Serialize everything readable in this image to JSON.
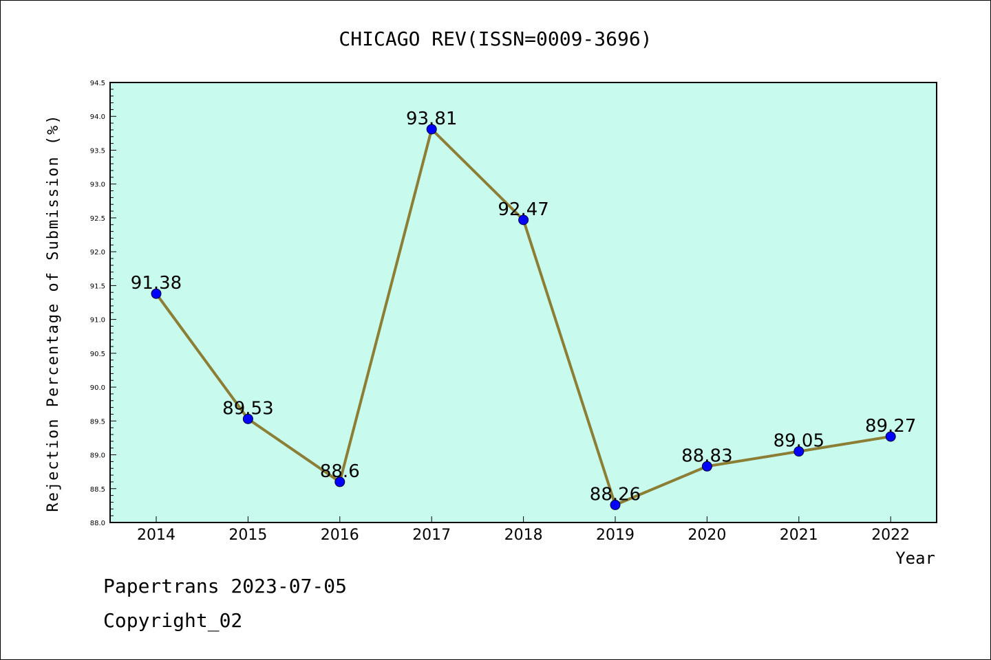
{
  "chart_data": {
    "type": "line",
    "title": "CHICAGO REV(ISSN=0009-3696)",
    "xlabel": "Year",
    "ylabel": "Rejection Percentage of Submission (%)",
    "categories": [
      "2014",
      "2015",
      "2016",
      "2017",
      "2018",
      "2019",
      "2020",
      "2021",
      "2022"
    ],
    "values": [
      91.38,
      89.53,
      88.6,
      93.81,
      92.47,
      88.26,
      88.83,
      89.05,
      89.27
    ],
    "data_labels": [
      "91.38",
      "89.53",
      "88.6",
      "93.81",
      "92.47",
      "88.26",
      "88.83",
      "89.05",
      "89.27"
    ],
    "ylim": [
      88.0,
      94.5
    ],
    "yticks": [
      "88.0",
      "88.5",
      "89.0",
      "89.5",
      "90.0",
      "90.5",
      "91.0",
      "91.5",
      "92.0",
      "92.5",
      "93.0",
      "93.5",
      "94.0",
      "94.5"
    ],
    "grid": false,
    "colors": {
      "plot_background": "#c8fbee",
      "line": "#8c7e35",
      "marker": "#0000ff"
    }
  },
  "footer": {
    "line1": "Papertrans 2023-07-05",
    "line2": "Copyright_02"
  }
}
